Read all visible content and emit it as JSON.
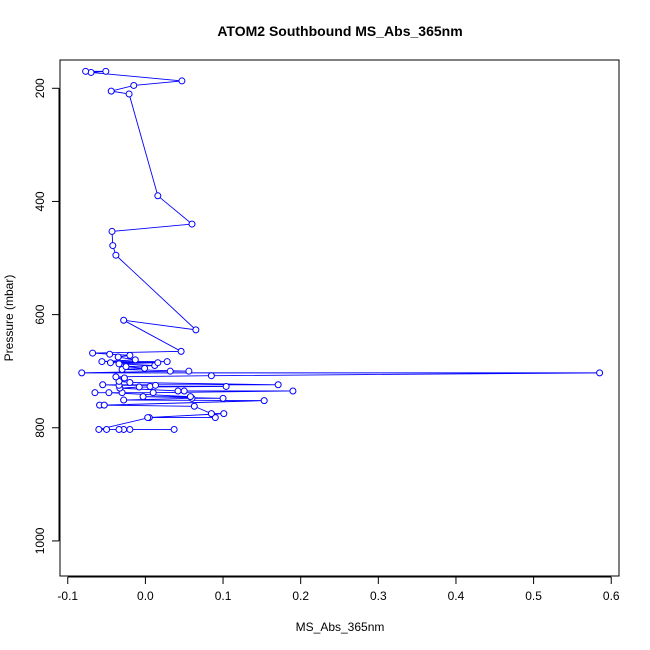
{
  "chart_data": {
    "type": "line",
    "title": "ATOM2 Southbound MS_Abs_365nm",
    "xlabel": "MS_Abs_365nm",
    "ylabel": "Pressure (mbar)",
    "xlim": [
      -0.11,
      0.61
    ],
    "ylim": [
      1062,
      150
    ],
    "y_axis_inverted": true,
    "x_ticks": [
      -0.1,
      0.0,
      0.1,
      0.2,
      0.3,
      0.4,
      0.5,
      0.6
    ],
    "x_tick_labels": [
      "-0.1",
      "0.0",
      "0.1",
      "0.2",
      "0.3",
      "0.4",
      "0.5",
      "0.6"
    ],
    "y_ticks": [
      200,
      400,
      600,
      800,
      1000
    ],
    "y_tick_labels": [
      "200",
      "400",
      "600",
      "800",
      "1000"
    ],
    "series_color": "#0000ff",
    "marker": "open-circle",
    "grid": false,
    "legend": "none",
    "series": [
      {
        "points": [
          [
            0.037,
            803
          ],
          [
            -0.05,
            803
          ],
          [
            -0.02,
            803
          ],
          [
            -0.028,
            803
          ],
          [
            -0.034,
            803
          ],
          [
            -0.06,
            803
          ],
          [
            0.005,
            782
          ],
          [
            0.09,
            782
          ],
          [
            0.003,
            782
          ],
          [
            0.101,
            775
          ],
          [
            0.085,
            775
          ],
          [
            0.063,
            762
          ],
          [
            -0.059,
            760
          ],
          [
            -0.053,
            760
          ],
          [
            0.153,
            752
          ],
          [
            -0.028,
            751
          ],
          [
            0.06,
            748
          ],
          [
            0.1,
            748
          ],
          [
            -0.003,
            745
          ],
          [
            0.058,
            745
          ],
          [
            -0.047,
            738
          ],
          [
            -0.065,
            738
          ],
          [
            -0.03,
            738
          ],
          [
            0.01,
            738
          ],
          [
            0.19,
            735
          ],
          [
            0.05,
            735
          ],
          [
            0.042,
            735
          ],
          [
            -0.033,
            730
          ],
          [
            -0.008,
            728
          ],
          [
            0.104,
            727
          ],
          [
            0.006,
            727
          ],
          [
            0.013,
            725
          ],
          [
            -0.034,
            725
          ],
          [
            -0.055,
            724
          ],
          [
            0.171,
            724
          ],
          [
            -0.02,
            720
          ],
          [
            -0.034,
            718
          ],
          [
            -0.027,
            712
          ],
          [
            -0.038,
            710
          ],
          [
            0.085,
            708
          ],
          [
            0.585,
            703
          ],
          [
            -0.082,
            703
          ],
          [
            0.032,
            700
          ],
          [
            0.056,
            700
          ],
          [
            -0.03,
            697
          ],
          [
            -0.001,
            695
          ],
          [
            -0.025,
            692
          ],
          [
            0.012,
            690
          ],
          [
            -0.034,
            687
          ],
          [
            0.016,
            685
          ],
          [
            -0.045,
            685
          ],
          [
            0.028,
            683
          ],
          [
            -0.056,
            683
          ],
          [
            -0.013,
            680
          ],
          [
            -0.035,
            675
          ],
          [
            -0.02,
            672
          ],
          [
            -0.046,
            670
          ],
          [
            -0.068,
            668
          ],
          [
            0.046,
            665
          ],
          [
            -0.028,
            610
          ],
          [
            0.065,
            627
          ],
          [
            -0.038,
            495
          ],
          [
            -0.042,
            478
          ],
          [
            -0.043,
            453
          ],
          [
            0.06,
            440
          ],
          [
            0.016,
            390
          ],
          [
            -0.021,
            210
          ],
          [
            -0.044,
            205
          ],
          [
            -0.015,
            195
          ],
          [
            0.047,
            187
          ],
          [
            -0.07,
            172
          ],
          [
            -0.051,
            170
          ],
          [
            -0.077,
            170
          ]
        ]
      }
    ]
  }
}
